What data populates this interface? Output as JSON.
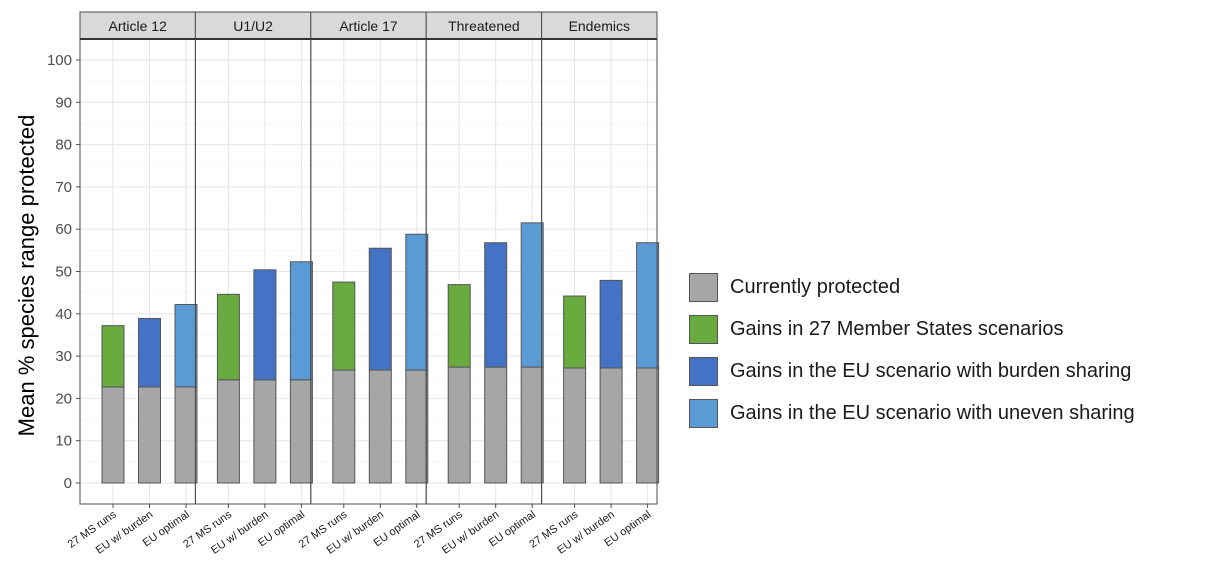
{
  "chart_data": {
    "type": "bar",
    "stacked": true,
    "ylabel": "Mean % species range protected",
    "xlabel": "",
    "ylim": [
      0,
      100
    ],
    "yticks": [
      0,
      10,
      20,
      30,
      40,
      50,
      60,
      70,
      80,
      90,
      100
    ],
    "grid": true,
    "legend_position": "right",
    "categories": [
      "27 MS runs",
      "EU w/ burden",
      "EU optimal"
    ],
    "facets": [
      {
        "label": "Article 12",
        "base": [
          22.7,
          22.7,
          22.7
        ],
        "top": [
          37.2,
          38.9,
          42.2
        ]
      },
      {
        "label": "U1/U2",
        "base": [
          24.4,
          24.4,
          24.4
        ],
        "top": [
          44.6,
          50.4,
          52.3
        ]
      },
      {
        "label": "Article 17",
        "base": [
          26.7,
          26.7,
          26.7
        ],
        "top": [
          47.5,
          55.5,
          58.8
        ]
      },
      {
        "label": "Threatened",
        "base": [
          27.4,
          27.4,
          27.4
        ],
        "top": [
          46.9,
          56.8,
          61.5
        ]
      },
      {
        "label": "Endemics",
        "base": [
          27.2,
          27.2,
          27.2
        ],
        "top": [
          44.2,
          47.9,
          56.8
        ]
      }
    ],
    "series": [
      {
        "name": "Currently protected",
        "color": "#a6a6a6"
      },
      {
        "name": "Gains in 27 Member States scenarios",
        "color": "#6aab40"
      },
      {
        "name": "Gains in the EU scenario with burden sharing",
        "color": "#4472c4"
      },
      {
        "name": "Gains in the EU scenario with uneven sharing",
        "color": "#5b9bd5"
      }
    ]
  }
}
